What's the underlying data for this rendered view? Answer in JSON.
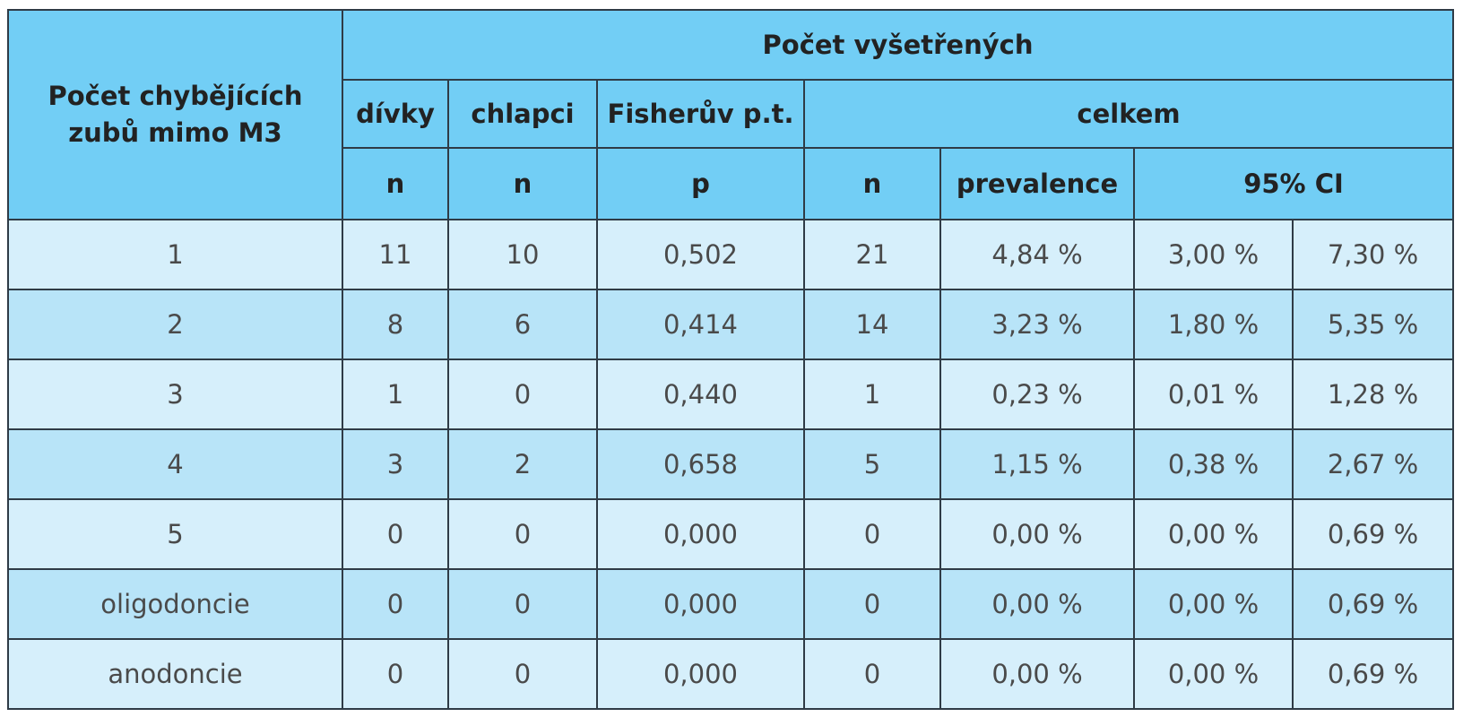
{
  "table": {
    "header": {
      "row_label": "Počet chybějících zubů mimo M3",
      "group": "Počet vyšetřených",
      "subgroups": [
        "dívky",
        "chlapci",
        "Fisherův p.t.",
        "celkem"
      ],
      "units": [
        "n",
        "n",
        "p",
        "n",
        "prevalence",
        "95% CI"
      ]
    },
    "rows": [
      [
        "1",
        "11",
        "10",
        "0,502",
        "21",
        "4,84 %",
        "3,00 %",
        "7,30 %"
      ],
      [
        "2",
        "8",
        "6",
        "0,414",
        "14",
        "3,23 %",
        "1,80 %",
        "5,35 %"
      ],
      [
        "3",
        "1",
        "0",
        "0,440",
        "1",
        "0,23 %",
        "0,01 %",
        "1,28 %"
      ],
      [
        "4",
        "3",
        "2",
        "0,658",
        "5",
        "1,15 %",
        "0,38 %",
        "2,67 %"
      ],
      [
        "5",
        "0",
        "0",
        "0,000",
        "0",
        "0,00 %",
        "0,00 %",
        "0,69 %"
      ],
      [
        "oligodoncie",
        "0",
        "0",
        "0,000",
        "0",
        "0,00 %",
        "0,00 %",
        "0,69 %"
      ],
      [
        "anodoncie",
        "0",
        "0",
        "0,000",
        "0",
        "0,00 %",
        "0,00 %",
        "0,69 %"
      ]
    ]
  }
}
